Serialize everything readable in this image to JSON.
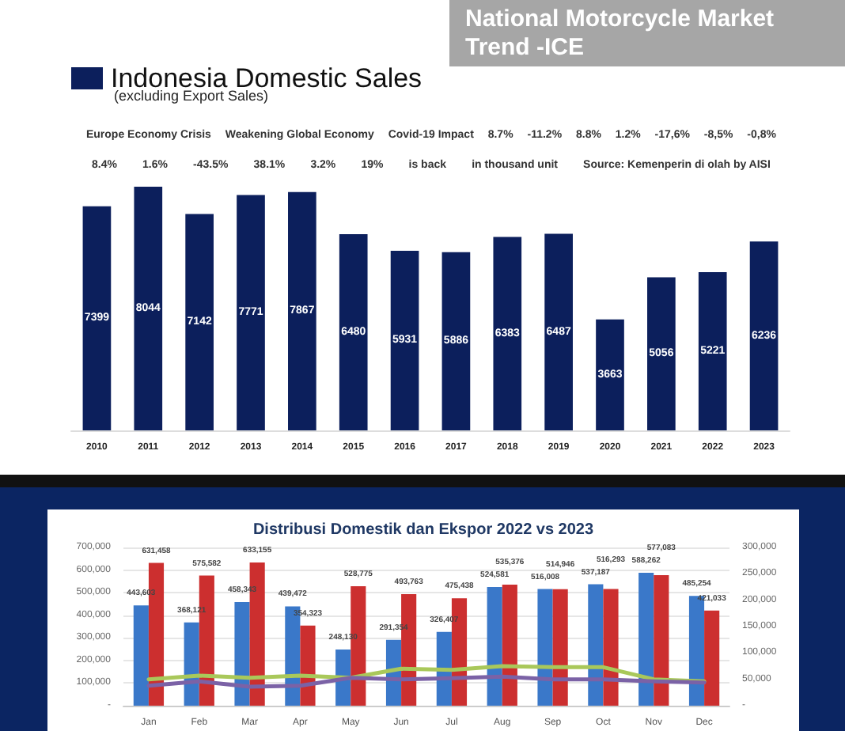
{
  "chart_data": [
    {
      "type": "bar",
      "title": "National Motorcycle Market Trend -ICE",
      "subtitle": "(excluding Export Sales)",
      "categories": [
        "2010",
        "2011",
        "2012",
        "2013",
        "2014",
        "2015",
        "2016",
        "2017",
        "2018",
        "2019",
        "2020",
        "2021",
        "2022",
        "2023"
      ],
      "series": [
        {
          "name": "Indonesia Domestic Sales",
          "color": "#0c1f5c",
          "values": [
            7399,
            8044,
            7142,
            7771,
            7867,
            6480,
            5931,
            5886,
            6383,
            6487,
            3663,
            5056,
            5221,
            6236
          ]
        }
      ],
      "data_labels": true,
      "legend": "top left",
      "grid": false,
      "annotations": [
        "Europe Economy Crisis",
        "Weakening Global Economy",
        "Covid-19 Impact",
        "8.7%",
        "-11.2%",
        "8.8%",
        "1.2%",
        "-17,6%",
        "-8,5%",
        "-0,8%",
        "8.4%",
        "1.6%",
        "-43.5%",
        "38.1%",
        "3.2%",
        "19%",
        "is back",
        "in thousand unit",
        "Source: Kemenperin di olah by AISI"
      ]
    },
    {
      "type": "bar",
      "title": "Distribusi Domestik dan Ekspor 2022 vs 2023",
      "categories": [
        "Jan",
        "Feb",
        "Mar",
        "Apr",
        "May",
        "Jun",
        "Jul",
        "Aug",
        "Sep",
        "Oct",
        "Nov",
        "Dec"
      ],
      "series": [
        {
          "color": "#3a78c9",
          "values": [
            443603,
            368121,
            458343,
            439472,
            248130,
            291354,
            326407,
            524581,
            516008,
            537187,
            588262,
            485254
          ],
          "value_labels": [
            "443,603",
            "368,121",
            "458,343",
            "439,472",
            "248,130",
            "291,354",
            "326,407",
            "524,581",
            "516,008",
            "537,187",
            "588,262",
            "485,254"
          ]
        },
        {
          "color": "#cc2f2f",
          "values": [
            631458,
            575582,
            633155,
            354323,
            528775,
            493763,
            475438,
            535376,
            514946,
            516293,
            577083,
            421033
          ],
          "value_labels": [
            "631,458",
            "575,582",
            "633,155",
            "354,323",
            "528,775",
            "493,763",
            "475,438",
            "535,376",
            "514,946",
            "516,293",
            "577,083",
            "421,033"
          ]
        },
        {
          "type": "line",
          "axis": "y2",
          "color": "#a9c85a",
          "values": [
            50000,
            57000,
            53000,
            57000,
            53000,
            70000,
            68000,
            75000,
            73000,
            73000,
            50000,
            46000
          ]
        },
        {
          "type": "line",
          "axis": "y2",
          "color": "#7b62a6",
          "values": [
            38000,
            46000,
            36000,
            38000,
            53000,
            50000,
            52000,
            55000,
            50000,
            50000,
            46000,
            44000
          ]
        }
      ],
      "ylim": [
        0,
        700000
      ],
      "yticks": [
        {
          "value": 0,
          "label": "-"
        },
        {
          "value": 100000,
          "label": "100,000"
        },
        {
          "value": 200000,
          "label": "200,000"
        },
        {
          "value": 300000,
          "label": "300,000"
        },
        {
          "value": 400000,
          "label": "400,000"
        },
        {
          "value": 500000,
          "label": "500,000"
        },
        {
          "value": 600000,
          "label": "600,000"
        },
        {
          "value": 700000,
          "label": "700,000"
        }
      ],
      "y2lim": [
        0,
        300000
      ],
      "y2ticks": [
        {
          "value": 0,
          "label": "-"
        },
        {
          "value": 50000,
          "label": "50,000"
        },
        {
          "value": 100000,
          "label": "100,000"
        },
        {
          "value": 150000,
          "label": "150,000"
        },
        {
          "value": 200000,
          "label": "200,000"
        },
        {
          "value": 250000,
          "label": "250,000"
        },
        {
          "value": 300000,
          "label": "300,000"
        }
      ],
      "grid": "y",
      "marker": "none",
      "line_style": "solid"
    }
  ]
}
